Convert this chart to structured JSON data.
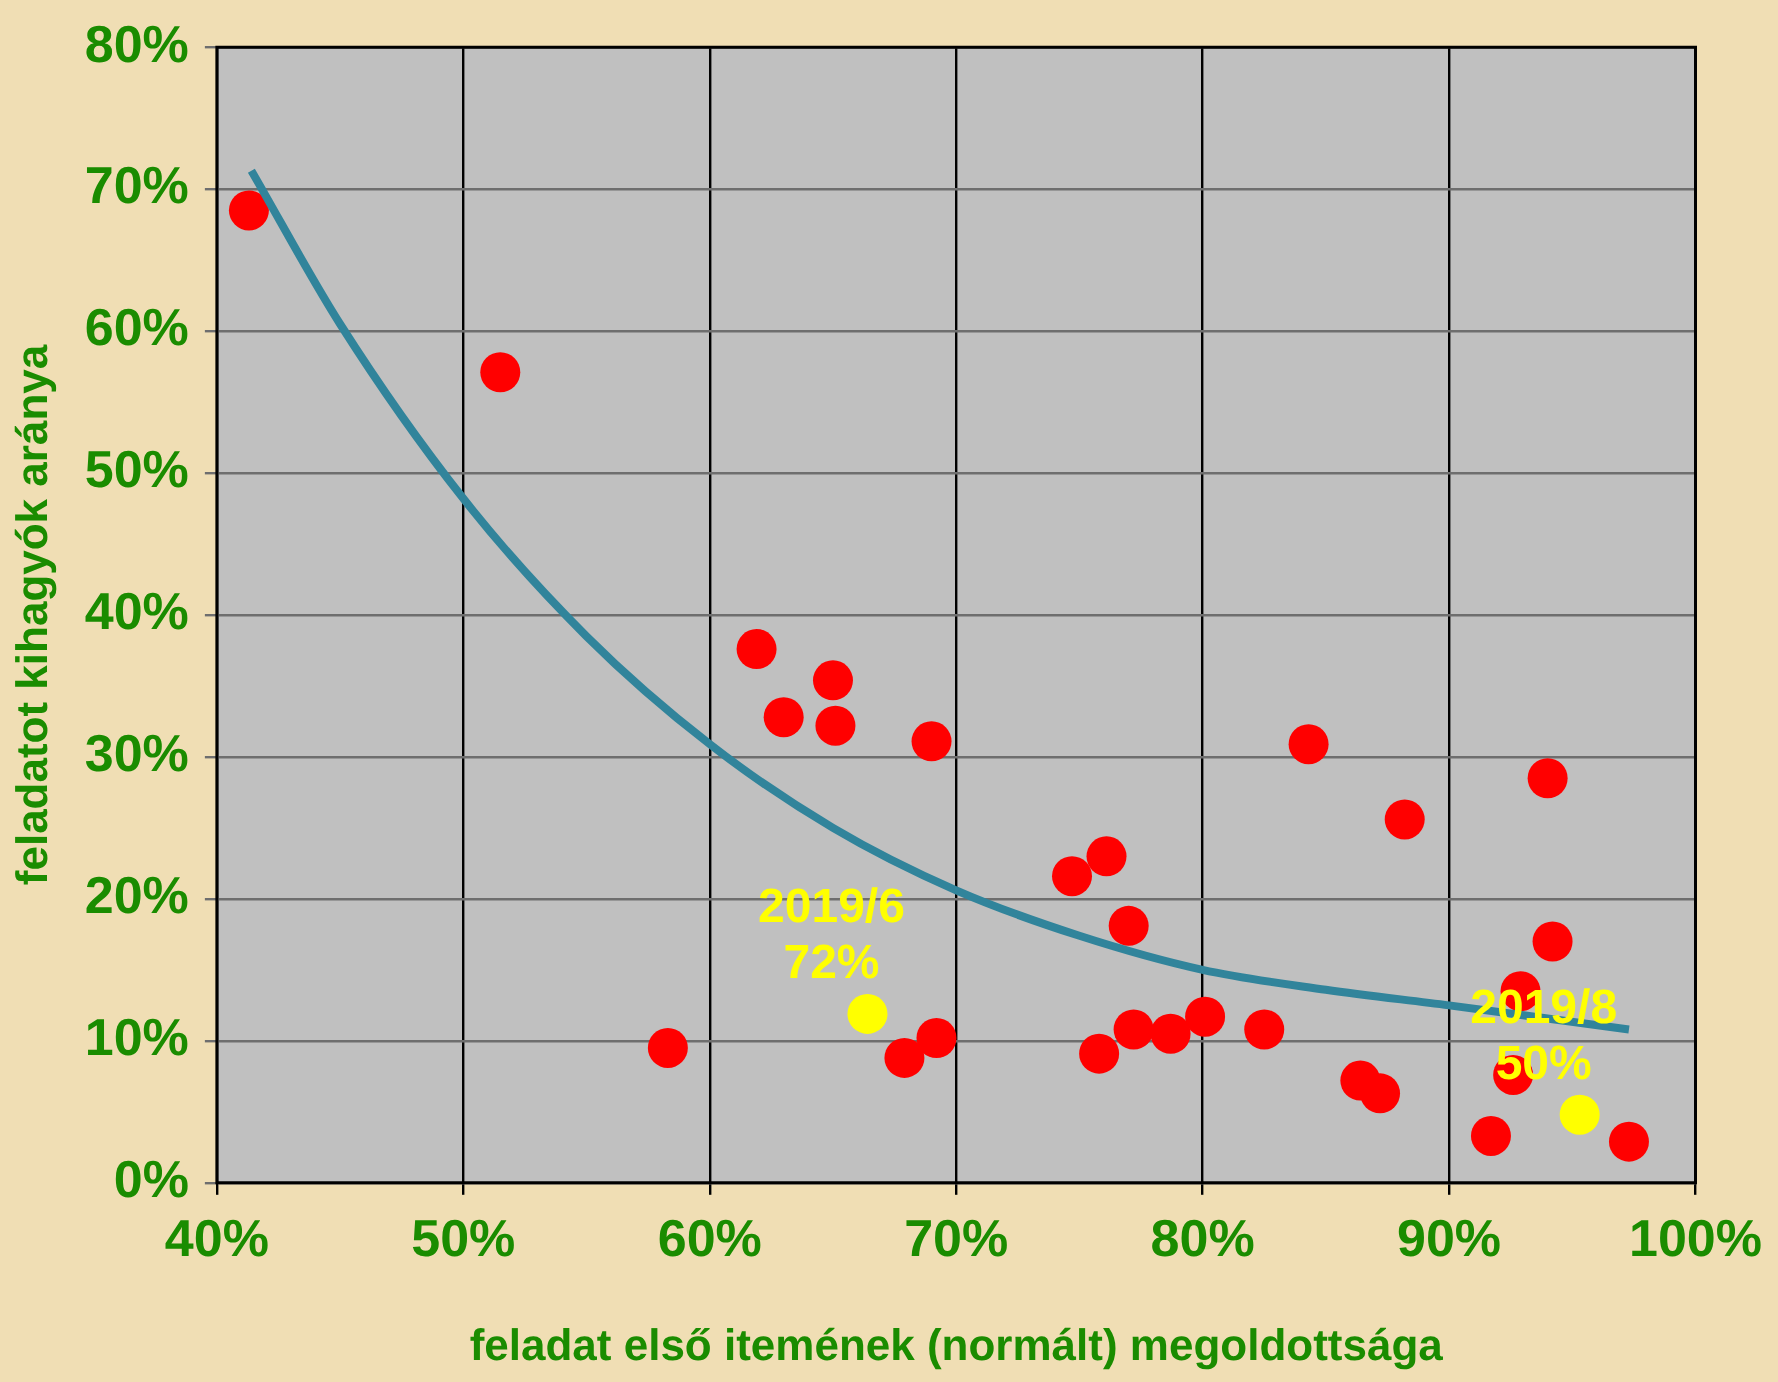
{
  "chart_data": {
    "type": "scatter",
    "xlabel": "feladat első itemének (normált) megoldottsága",
    "ylabel": "feladatot kihagyók aránya",
    "series": [
      {
        "color": "#ff0000",
        "x": [
          41.3,
          51.5,
          58.3,
          61.9,
          63.0,
          65.0,
          65.1,
          69.0,
          67.9,
          69.2,
          74.7,
          76.1,
          77.0,
          75.8,
          77.2,
          78.7,
          80.1,
          82.5,
          84.3,
          88.2,
          86.4,
          87.2,
          91.7,
          92.6,
          92.9,
          94.2,
          94.0,
          97.3
        ],
        "values": [
          68.5,
          57.1,
          9.5,
          37.6,
          32.8,
          35.4,
          32.2,
          31.1,
          8.8,
          10.2,
          21.6,
          23.0,
          18.1,
          9.1,
          10.8,
          10.5,
          11.7,
          10.8,
          30.9,
          25.6,
          7.2,
          6.3,
          3.3,
          7.6,
          13.5,
          17.0,
          28.5,
          2.9
        ]
      },
      {
        "color": "#ffff00",
        "x": [
          66.4,
          95.3
        ],
        "values": [
          11.9,
          4.8
        ]
      },
      {
        "type": "line",
        "color": "#31849b",
        "marker": "none",
        "x": [
          41.4,
          45,
          50,
          55,
          60,
          65,
          70,
          75,
          80,
          85,
          90,
          97.3
        ],
        "values": [
          71.3,
          60.5,
          48.2,
          38.5,
          30.9,
          25,
          20.6,
          17.4,
          15.0,
          13.6,
          12.5,
          10.8
        ]
      }
    ],
    "annotations": [
      {
        "text": "2019/6\n72%",
        "x": 66.4,
        "y": 11.9
      },
      {
        "text": "2019/8\n50%",
        "x": 95.3,
        "y": 4.8
      }
    ],
    "xlim": [
      40,
      100
    ],
    "xticks": [
      {
        "value": 40,
        "label": "40%"
      },
      {
        "value": 50,
        "label": "50%"
      },
      {
        "value": 60,
        "label": "60%"
      },
      {
        "value": 70,
        "label": "70%"
      },
      {
        "value": 80,
        "label": "80%"
      },
      {
        "value": 90,
        "label": "90%"
      },
      {
        "value": 100,
        "label": "100%"
      }
    ],
    "ylim": [
      0,
      80
    ],
    "yticks": [
      {
        "value": 0,
        "label": "0%"
      },
      {
        "value": 10,
        "label": "10%"
      },
      {
        "value": 20,
        "label": "20%"
      },
      {
        "value": 30,
        "label": "30%"
      },
      {
        "value": 40,
        "label": "40%"
      },
      {
        "value": 50,
        "label": "50%"
      },
      {
        "value": 60,
        "label": "60%"
      },
      {
        "value": 70,
        "label": "70%"
      },
      {
        "value": 80,
        "label": "80%"
      }
    ],
    "grid": true,
    "legend": false,
    "marker": "circle"
  }
}
